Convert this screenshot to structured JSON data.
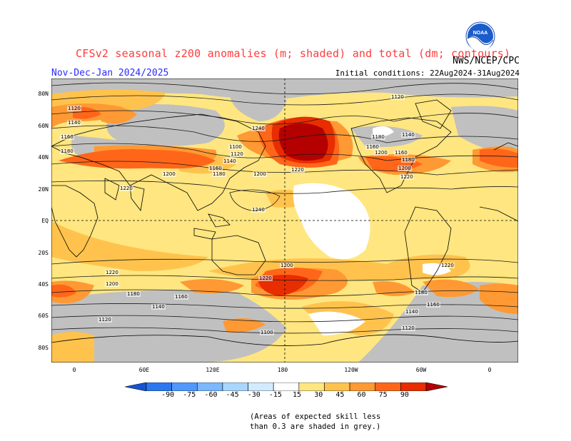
{
  "header": {
    "title": "CFSv2 seasonal z200 anomalies (m; shaded) and total (dm; contours)",
    "agency": "NWS/NCEP/CPC",
    "period": "Nov-Dec-Jan 2024/2025",
    "initial_conditions": "Initial conditions: 22Aug2024-31Aug2024",
    "logo_text": "NOAA"
  },
  "map": {
    "lat_labels": [
      "80N",
      "60N",
      "40N",
      "20N",
      "EQ",
      "20S",
      "40S",
      "60S",
      "80S"
    ],
    "lon_labels": [
      "0",
      "60E",
      "120E",
      "180",
      "120W",
      "60W",
      "0"
    ],
    "contour_labels": [
      "1120",
      "1140",
      "1160",
      "1180",
      "1200",
      "1220",
      "1240",
      "1100",
      "1120",
      "1140",
      "1160",
      "1180",
      "1200",
      "1220",
      "1160",
      "1180",
      "1200",
      "1220",
      "1240",
      "1120",
      "1140",
      "1160",
      "1180",
      "1200",
      "1220",
      "1220",
      "1200",
      "1180",
      "1160",
      "1140",
      "1120",
      "1220",
      "1200",
      "1180",
      "1160",
      "1140",
      "1120",
      "1100"
    ],
    "colors": {
      "grey": "#c0c0c0",
      "pos15": "#ffe680",
      "pos30": "#ffc34d",
      "pos45": "#ff9933",
      "pos60": "#ff6619",
      "pos75": "#e82d00",
      "pos90": "#b40000",
      "coast": "#000000",
      "contour": "#1a1a1a"
    }
  },
  "colorbar": {
    "labels": [
      "-90",
      "-75",
      "-60",
      "-45",
      "-30",
      "-15",
      "15",
      "30",
      "45",
      "60",
      "75",
      "90"
    ],
    "colors": [
      "#1454d2",
      "#2a78f0",
      "#4f98ff",
      "#7bb8ff",
      "#a8d6ff",
      "#d2ecff",
      "#ffffff",
      "#ffe680",
      "#ffc34d",
      "#ff9933",
      "#ff6619",
      "#e82d00",
      "#b40000"
    ]
  },
  "footnote": {
    "line1": "(Areas of expected skill less",
    "line2": "than 0.3 are shaded in grey.)"
  }
}
